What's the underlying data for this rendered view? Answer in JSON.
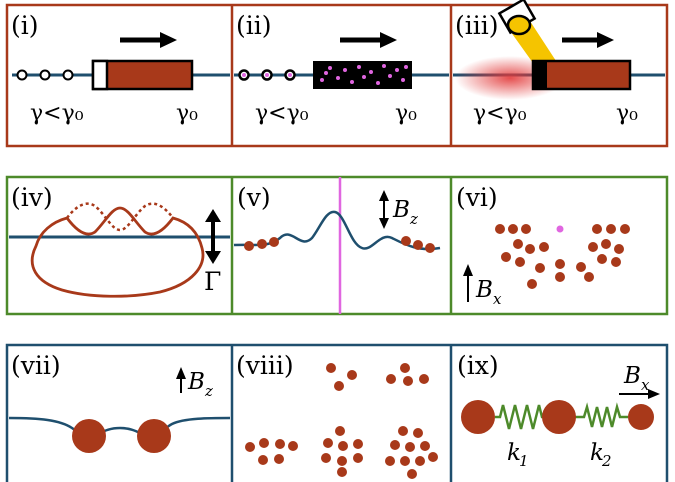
{
  "colors": {
    "row1_border": "#a8391a",
    "row2_border": "#4d8a2a",
    "row3_border": "#1f4f6e",
    "particle": "#a8391a",
    "wire": "#1f4f6e",
    "defect": "#e066e0",
    "spring": "#4d8a2a",
    "beam": "#f5c400"
  },
  "panels": [
    {
      "label": "(i)",
      "left_text": "γ<γ₀",
      "right_text": "γ₀"
    },
    {
      "label": "(ii)",
      "left_text": "γ<γ₀",
      "right_text": "γ₀"
    },
    {
      "label": "(iii)",
      "left_text": "γ<γ₀",
      "right_text": "γ₀"
    },
    {
      "label": "(iv)",
      "gamma": "Γ"
    },
    {
      "label": "(v)",
      "field": "B",
      "field_sub": "z"
    },
    {
      "label": "(vi)",
      "field": "B",
      "field_sub": "x"
    },
    {
      "label": "(vii)",
      "field": "B",
      "field_sub": "z"
    },
    {
      "label": "(viii)"
    },
    {
      "label": "(ix)",
      "field": "B",
      "field_sub": "x",
      "k1": "k",
      "k1_sub": "1",
      "k2": "k",
      "k2_sub": "2"
    }
  ]
}
